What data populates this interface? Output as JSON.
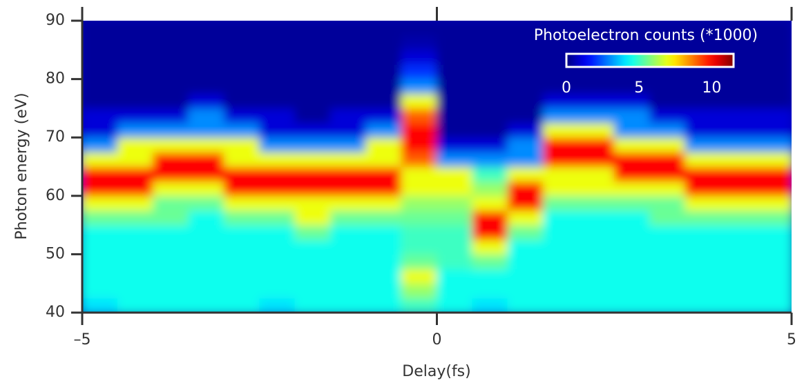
{
  "chart_data": {
    "type": "heatmap",
    "xlabel": "Delay(fs)",
    "ylabel": "Photon energy (eV)",
    "colorbar_label": "Photoelectron counts (*1000)",
    "colormap": "jet",
    "xlim": [
      -5,
      5
    ],
    "xticks": [
      {
        "value": -5,
        "label": "–5"
      },
      0,
      5
    ],
    "ylim": [
      40,
      90
    ],
    "yticks": [
      40,
      50,
      60,
      70,
      80,
      90
    ],
    "zlim": [
      0,
      11.5
    ],
    "zticks": [
      0,
      5,
      10
    ],
    "x": [
      -4.75,
      -4.25,
      -3.75,
      -3.25,
      -2.75,
      -2.25,
      -1.75,
      -1.25,
      -0.75,
      -0.25,
      0.25,
      0.75,
      1.25,
      1.75,
      2.25,
      2.75,
      3.25,
      3.75,
      4.25,
      4.75
    ],
    "y": [
      41.25,
      43.75,
      46.25,
      48.75,
      51.25,
      53.75,
      56.25,
      58.75,
      61.25,
      63.75,
      66.25,
      68.75,
      71.25,
      73.75,
      76.25,
      78.75,
      81.25,
      83.75,
      86.25,
      88.75
    ],
    "z": [
      [
        4,
        4.5,
        4.5,
        4.5,
        4.5,
        4,
        4.5,
        4.5,
        4.5,
        5,
        4.5,
        4,
        4.5,
        4.5,
        4.5,
        4.5,
        4.5,
        4.5,
        4.5,
        4.5
      ],
      [
        4.5,
        4.5,
        4.5,
        4.5,
        4.5,
        4.5,
        4.5,
        4.5,
        4.5,
        6,
        4.5,
        4.5,
        4.5,
        4.5,
        4.5,
        4.5,
        4.5,
        4.5,
        4.5,
        4.5
      ],
      [
        4.5,
        4.5,
        4.5,
        4.5,
        4.5,
        4.5,
        4.5,
        4.5,
        4.5,
        7,
        4.5,
        4.5,
        4.5,
        4.5,
        4.5,
        4.5,
        4.5,
        4.5,
        4.5,
        4.5
      ],
      [
        4.5,
        4.5,
        4.5,
        4.5,
        4.5,
        4.5,
        4.5,
        4.5,
        4.5,
        5.5,
        5,
        5.5,
        4.5,
        4.5,
        4.5,
        4.5,
        4.5,
        4.5,
        4.5,
        4.5
      ],
      [
        4.5,
        4.5,
        4.5,
        4.5,
        4.5,
        4.5,
        4.5,
        4.5,
        4.5,
        5,
        5,
        7,
        4.5,
        4.5,
        4.5,
        4.5,
        4.5,
        4.5,
        4.5,
        4.5
      ],
      [
        4.5,
        4.5,
        4.5,
        4.5,
        4.5,
        4.5,
        5.5,
        4.5,
        4.5,
        5,
        5,
        10,
        5.5,
        4.5,
        4.5,
        4.5,
        4.5,
        4.5,
        4.5,
        4.5
      ],
      [
        5.5,
        5.5,
        5.5,
        4.5,
        5.5,
        5.5,
        7,
        5.5,
        5.5,
        5.5,
        5.5,
        10,
        7,
        4.5,
        4.5,
        4.5,
        5.5,
        5.5,
        5.5,
        5.5
      ],
      [
        7,
        7,
        5.5,
        5.5,
        7,
        7,
        7,
        7,
        7,
        6,
        6,
        7,
        10,
        5.5,
        5.5,
        5.5,
        5.5,
        7,
        7,
        7
      ],
      [
        10,
        10,
        7,
        7,
        10,
        10,
        10,
        10,
        10,
        7,
        7,
        6,
        10,
        7,
        7,
        7,
        7,
        10,
        10,
        10
      ],
      [
        10,
        10,
        10,
        10,
        10,
        10,
        10,
        10,
        10,
        7,
        7,
        5,
        7,
        7,
        7,
        10,
        10,
        10,
        10,
        10
      ],
      [
        7,
        7,
        10,
        10,
        7,
        7,
        7,
        7,
        7,
        9,
        3,
        3,
        3,
        10,
        10,
        10,
        10,
        7,
        7,
        7
      ],
      [
        3,
        7,
        7,
        7,
        7,
        3,
        3,
        3,
        7,
        10,
        1,
        1,
        3,
        10,
        10,
        7,
        7,
        3,
        3,
        3
      ],
      [
        1,
        3,
        3,
        3,
        3,
        1,
        1,
        1,
        3,
        10,
        0.3,
        0.3,
        1,
        7,
        7,
        3,
        3,
        1,
        1,
        1
      ],
      [
        1,
        1,
        1,
        3,
        1,
        1,
        0.3,
        1,
        1,
        9,
        0.3,
        0.3,
        0.3,
        3,
        3,
        3,
        1,
        1,
        1,
        1
      ],
      [
        0.3,
        0.3,
        0.3,
        1,
        0.3,
        0.3,
        0.3,
        0.3,
        0.3,
        7,
        0.3,
        0.3,
        0.3,
        1,
        1,
        1,
        0.3,
        0.3,
        0.3,
        0.3
      ],
      [
        0.3,
        0.3,
        0.3,
        0.3,
        0.3,
        0.3,
        0.3,
        0.3,
        0.3,
        3,
        0.3,
        0.3,
        0.3,
        0.3,
        0.3,
        0.3,
        0.3,
        0.3,
        0.3,
        0.3
      ],
      [
        0.3,
        0.3,
        0.3,
        0.3,
        0.3,
        0.3,
        0.3,
        0.3,
        0.3,
        2,
        0.3,
        0.3,
        0.3,
        0.3,
        0.3,
        0.3,
        0.3,
        0.3,
        0.3,
        0.3
      ],
      [
        0.3,
        0.3,
        0.3,
        0.3,
        0.3,
        0.3,
        0.3,
        0.3,
        0.3,
        1,
        0.3,
        0.3,
        0.3,
        0.3,
        0.3,
        0.3,
        0.3,
        0.3,
        0.3,
        0.3
      ],
      [
        0.3,
        0.3,
        0.3,
        0.3,
        0.3,
        0.3,
        0.3,
        0.3,
        0.3,
        0.5,
        0.3,
        0.3,
        0.3,
        0.3,
        0.3,
        0.3,
        0.3,
        0.3,
        0.3,
        0.3
      ],
      [
        0.3,
        0.3,
        0.3,
        0.3,
        0.3,
        0.3,
        0.3,
        0.3,
        0.3,
        0.3,
        0.3,
        0.3,
        0.3,
        0.3,
        0.3,
        0.3,
        0.3,
        0.3,
        0.3,
        0.3
      ]
    ]
  }
}
